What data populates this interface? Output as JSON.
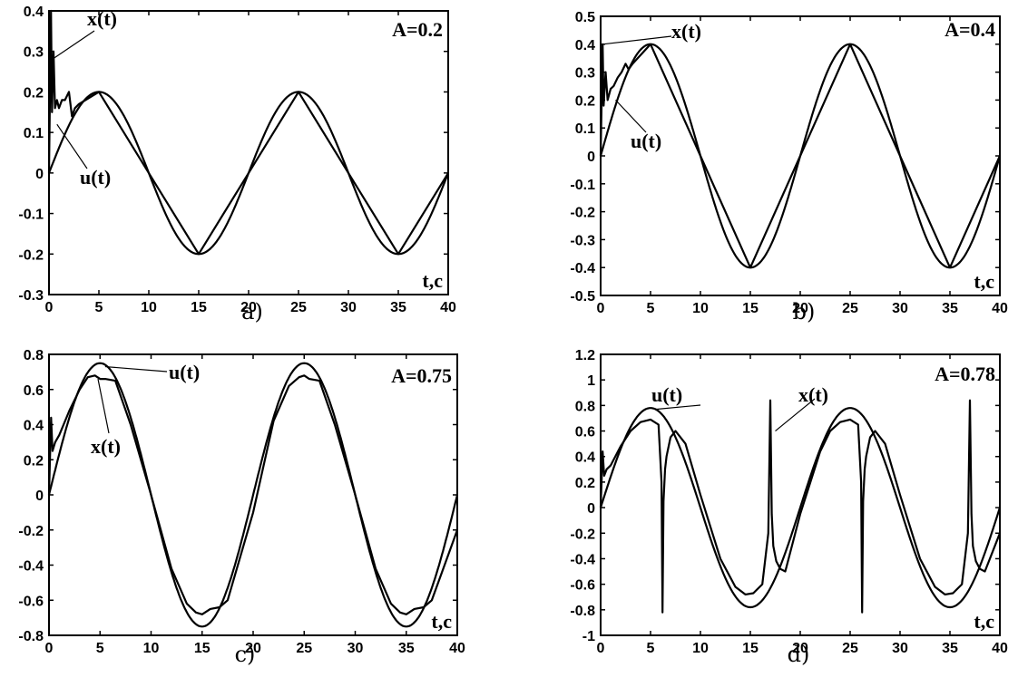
{
  "chart_data": [
    {
      "type": "line",
      "panel_label": "a)",
      "amplitude_label": "A=0.2",
      "xlabel": "t,c",
      "xlim": [
        0,
        40
      ],
      "ylim": [
        -0.3,
        0.4
      ],
      "xticks": [
        0,
        5,
        10,
        15,
        20,
        25,
        30,
        35,
        40
      ],
      "xtick_labels": [
        "0",
        "5",
        "10",
        "15",
        "20",
        "25",
        "30",
        "35",
        "40"
      ],
      "yticks": [
        0.4,
        0.3,
        0.2,
        0.1,
        0,
        -0.1,
        -0.2,
        -0.3
      ],
      "ytick_labels": [
        "0.4",
        "0.3",
        "0.2",
        "0.1",
        "0",
        "-0.1",
        "-0.2",
        "-0.3"
      ],
      "series": [
        {
          "name": "u(t)",
          "amplitude": 0.2,
          "period": 20,
          "t": [
            0,
            5,
            10,
            15,
            20,
            25,
            30,
            35,
            40
          ],
          "values": [
            0,
            0.2,
            0,
            -0.2,
            0,
            0.2,
            0,
            -0.2,
            0
          ]
        },
        {
          "name": "x(t)",
          "t": [
            0,
            0.2,
            0.3,
            0.45,
            0.6,
            0.8,
            1.0,
            1.3,
            1.6,
            2.0,
            2.3,
            2.6,
            3.0,
            5,
            10,
            15,
            20,
            25,
            30,
            35,
            40
          ],
          "values": [
            0,
            0.4,
            0.15,
            0.3,
            0.16,
            0.18,
            0.16,
            0.18,
            0.18,
            0.2,
            0.14,
            0.16,
            0.17,
            0.2,
            0,
            -0.2,
            0,
            0.2,
            0,
            -0.2,
            0
          ]
        }
      ],
      "annotations": [
        {
          "text": "x(t)",
          "series": "x(t)",
          "points_to": [
            0.3,
            0.28
          ]
        },
        {
          "text": "u(t)",
          "series": "u(t)",
          "points_to": [
            0.8,
            0.12
          ]
        }
      ]
    },
    {
      "type": "line",
      "panel_label": "b)",
      "amplitude_label": "A=0.4",
      "xlabel": "t,c",
      "xlim": [
        0,
        40
      ],
      "ylim": [
        -0.5,
        0.5
      ],
      "xticks": [
        0,
        5,
        10,
        15,
        20,
        25,
        30,
        35,
        40
      ],
      "xtick_labels": [
        "0",
        "5",
        "10",
        "15",
        "20",
        "25",
        "30",
        "35",
        "40"
      ],
      "yticks": [
        0.5,
        0.4,
        0.3,
        0.2,
        0.1,
        0,
        -0.1,
        -0.2,
        -0.3,
        -0.4,
        -0.5
      ],
      "ytick_labels": [
        "0.5",
        "0.4",
        "0.3",
        "0.2",
        "0.1",
        "0",
        "-0.1",
        "-0.2",
        "-0.3",
        "-0.4",
        "-0.5"
      ],
      "series": [
        {
          "name": "u(t)",
          "amplitude": 0.4,
          "period": 20,
          "t": [
            0,
            5,
            10,
            15,
            20,
            25,
            30,
            35,
            40
          ],
          "values": [
            0,
            0.4,
            0,
            -0.4,
            0,
            0.4,
            0,
            -0.4,
            0
          ]
        },
        {
          "name": "x(t)",
          "t": [
            0,
            0.2,
            0.3,
            0.5,
            0.7,
            1.0,
            1.3,
            1.7,
            2.1,
            2.5,
            2.8,
            3.2,
            5,
            10,
            15,
            20,
            25,
            30,
            35,
            40
          ],
          "values": [
            0,
            0.4,
            0.18,
            0.3,
            0.2,
            0.24,
            0.25,
            0.28,
            0.3,
            0.33,
            0.31,
            0.33,
            0.4,
            0,
            -0.4,
            0,
            0.4,
            0,
            -0.4,
            0
          ]
        }
      ],
      "annotations": [
        {
          "text": "x(t)",
          "series": "x(t)",
          "points_to": [
            0.2,
            0.4
          ]
        },
        {
          "text": "u(t)",
          "series": "u(t)",
          "points_to": [
            1.5,
            0.2
          ]
        }
      ]
    },
    {
      "type": "line",
      "panel_label": "c)",
      "amplitude_label": "A=0.75",
      "xlabel": "t,c",
      "xlim": [
        0,
        40
      ],
      "ylim": [
        -0.8,
        0.8
      ],
      "xticks": [
        0,
        5,
        10,
        15,
        20,
        25,
        30,
        35,
        40
      ],
      "xtick_labels": [
        "0",
        "5",
        "10",
        "15",
        "20",
        "25",
        "30",
        "35",
        "40"
      ],
      "yticks": [
        0.8,
        0.6,
        0.4,
        0.2,
        0,
        -0.2,
        -0.4,
        -0.6,
        -0.8
      ],
      "ytick_labels": [
        "0.8",
        "0.6",
        "0.4",
        "0.2",
        "0",
        "-0.2",
        "-0.4",
        "-0.6",
        "-0.8"
      ],
      "series": [
        {
          "name": "u(t)",
          "amplitude": 0.75,
          "period": 20,
          "t": [
            0,
            5,
            10,
            15,
            20,
            25,
            30,
            35,
            40
          ],
          "values": [
            0,
            0.75,
            0,
            -0.75,
            0,
            0.75,
            0,
            -0.75,
            0
          ]
        },
        {
          "name": "x(t)",
          "t": [
            0,
            0.2,
            0.35,
            0.6,
            1,
            2,
            3,
            3.8,
            4.5,
            5,
            5.5,
            6.5,
            8,
            10,
            12,
            13.5,
            14.4,
            15,
            15.8,
            16.7,
            17.5,
            20,
            22,
            23.5,
            24.5,
            25,
            25.5,
            26.5,
            28,
            30,
            32,
            33.5,
            34.4,
            35,
            35.8,
            36.7,
            37.5,
            40
          ],
          "values": [
            0,
            0.44,
            0.25,
            0.3,
            0.34,
            0.48,
            0.6,
            0.67,
            0.68,
            0.66,
            0.66,
            0.65,
            0.4,
            0,
            -0.42,
            -0.62,
            -0.67,
            -0.68,
            -0.65,
            -0.64,
            -0.6,
            -0.1,
            0.42,
            0.62,
            0.67,
            0.68,
            0.66,
            0.65,
            0.4,
            0,
            -0.42,
            -0.62,
            -0.67,
            -0.68,
            -0.65,
            -0.64,
            -0.6,
            -0.2
          ]
        }
      ],
      "annotations": [
        {
          "text": "u(t)",
          "series": "u(t)",
          "points_to": [
            5.5,
            0.73
          ]
        },
        {
          "text": "x(t)",
          "series": "x(t)",
          "points_to": [
            4.8,
            0.66
          ]
        }
      ]
    },
    {
      "type": "line",
      "panel_label": "d)",
      "amplitude_label": "A=0.78",
      "xlabel": "t,c",
      "xlim": [
        0,
        40
      ],
      "ylim": [
        -1,
        1.2
      ],
      "xticks": [
        0,
        5,
        10,
        15,
        20,
        25,
        30,
        35,
        40
      ],
      "xtick_labels": [
        "0",
        "5",
        "10",
        "15",
        "20",
        "25",
        "30",
        "35",
        "40"
      ],
      "yticks": [
        1.2,
        1,
        0.8,
        0.6,
        0.4,
        0.2,
        0,
        -0.2,
        -0.4,
        -0.6,
        -0.8,
        -1
      ],
      "ytick_labels": [
        "1.2",
        "1",
        "0.8",
        "0.6",
        "0.4",
        "0.2",
        "0",
        "-0.2",
        "-0.4",
        "-0.6",
        "-0.8",
        "-1"
      ],
      "series": [
        {
          "name": "u(t)",
          "amplitude": 0.78,
          "period": 20,
          "t": [
            0,
            5,
            10,
            15,
            20,
            25,
            30,
            35,
            40
          ],
          "values": [
            0,
            0.78,
            0,
            -0.78,
            0,
            0.78,
            0,
            -0.78,
            0
          ]
        },
        {
          "name": "x(t)",
          "t": [
            0,
            0.2,
            0.35,
            0.6,
            1,
            2,
            3,
            4,
            5,
            5.8,
            6.1,
            6.2,
            6.3,
            6.45,
            6.6,
            7.0,
            7.5,
            8.5,
            10,
            12,
            13.5,
            14.5,
            15.3,
            16.2,
            16.8,
            17.0,
            17.15,
            17.3,
            17.6,
            18.0,
            18.5,
            20,
            22,
            23,
            24,
            25,
            25.8,
            26.1,
            26.2,
            26.3,
            26.45,
            26.6,
            27.0,
            27.5,
            28.5,
            30,
            32,
            33.5,
            34.5,
            35.3,
            36.2,
            36.8,
            37.0,
            37.15,
            37.3,
            37.6,
            38.0,
            38.5,
            40
          ],
          "values": [
            0,
            0.44,
            0.25,
            0.3,
            0.33,
            0.48,
            0.6,
            0.67,
            0.69,
            0.65,
            0.2,
            -0.82,
            0.05,
            0.3,
            0.4,
            0.55,
            0.6,
            0.5,
            0.1,
            -0.4,
            -0.62,
            -0.68,
            -0.67,
            -0.6,
            -0.2,
            0.84,
            -0.05,
            -0.3,
            -0.42,
            -0.48,
            -0.5,
            -0.05,
            0.44,
            0.6,
            0.67,
            0.69,
            0.65,
            0.2,
            -0.82,
            0.05,
            0.3,
            0.4,
            0.55,
            0.6,
            0.5,
            0.1,
            -0.4,
            -0.62,
            -0.68,
            -0.67,
            -0.6,
            -0.2,
            0.84,
            -0.05,
            -0.3,
            -0.42,
            -0.48,
            -0.5,
            -0.2
          ]
        }
      ],
      "annotations": [
        {
          "text": "u(t)",
          "series": "u(t)",
          "points_to": [
            5.5,
            0.77
          ]
        },
        {
          "text": "x(t)",
          "series": "x(t)",
          "points_to": [
            17.5,
            0.6
          ]
        }
      ]
    }
  ]
}
